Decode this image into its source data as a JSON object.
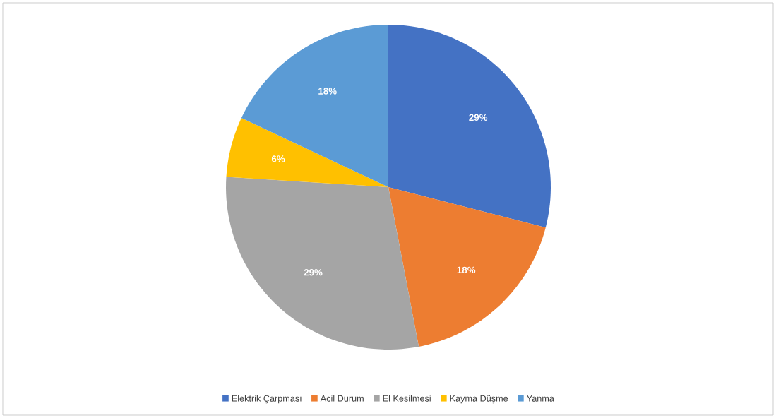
{
  "chart_data": {
    "type": "pie",
    "categories": [
      "Elektrik Çarpması",
      "Acil Durum",
      "El Kesilmesi",
      "Kayma Düşme",
      "Yanma"
    ],
    "values": [
      29,
      18,
      29,
      6,
      18
    ],
    "value_labels": [
      "29%",
      "18%",
      "29%",
      "6%",
      "18%"
    ],
    "colors": [
      "#4472c4",
      "#ed7d31",
      "#a5a5a5",
      "#ffc000",
      "#5b9bd5"
    ],
    "legend": "bottom"
  }
}
